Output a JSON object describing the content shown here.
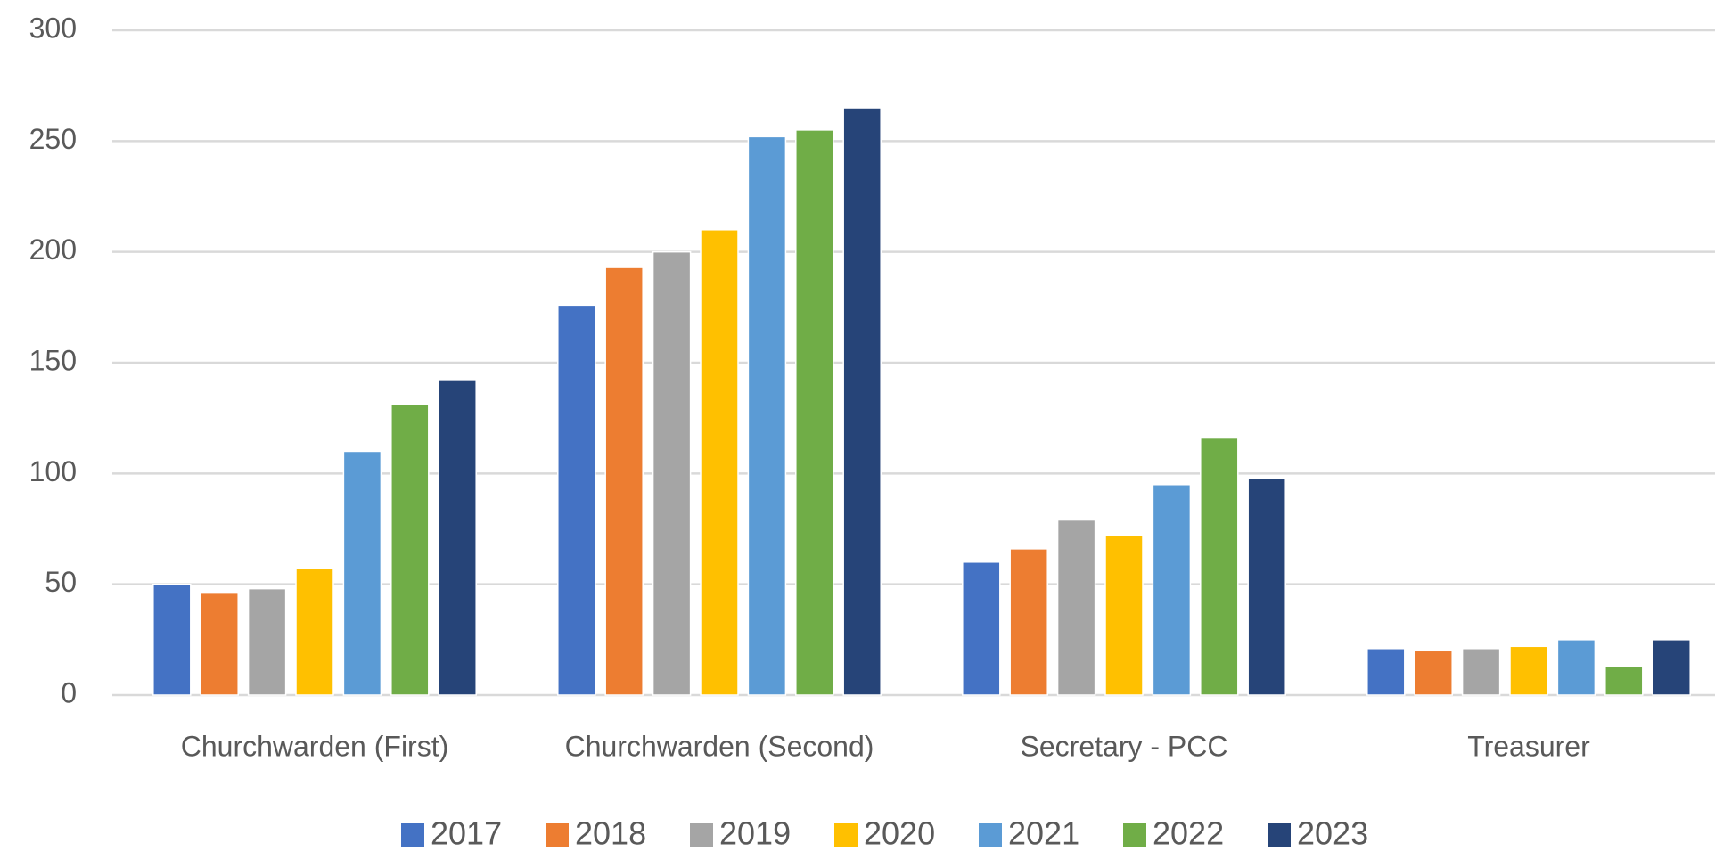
{
  "chart_data": {
    "type": "bar",
    "categories": [
      "Churchwarden (First)",
      "Churchwarden (Second)",
      "Secretary - PCC",
      "Treasurer"
    ],
    "series": [
      {
        "name": "2017",
        "color": "#4472c4",
        "values": [
          50,
          176,
          60,
          21
        ]
      },
      {
        "name": "2018",
        "color": "#ed7d31",
        "values": [
          46,
          193,
          66,
          20
        ]
      },
      {
        "name": "2019",
        "color": "#a5a5a5",
        "values": [
          48,
          200,
          79,
          21
        ]
      },
      {
        "name": "2020",
        "color": "#ffc000",
        "values": [
          57,
          210,
          72,
          22
        ]
      },
      {
        "name": "2021",
        "color": "#5b9bd5",
        "values": [
          110,
          252,
          95,
          25
        ]
      },
      {
        "name": "2022",
        "color": "#70ad47",
        "values": [
          131,
          255,
          116,
          13
        ]
      },
      {
        "name": "2023",
        "color": "#264478",
        "values": [
          142,
          265,
          98,
          25
        ]
      }
    ],
    "ylim": [
      0,
      300
    ],
    "yticks": [
      0,
      50,
      100,
      150,
      200,
      250,
      300
    ],
    "grid": true,
    "legend": "bottom"
  }
}
